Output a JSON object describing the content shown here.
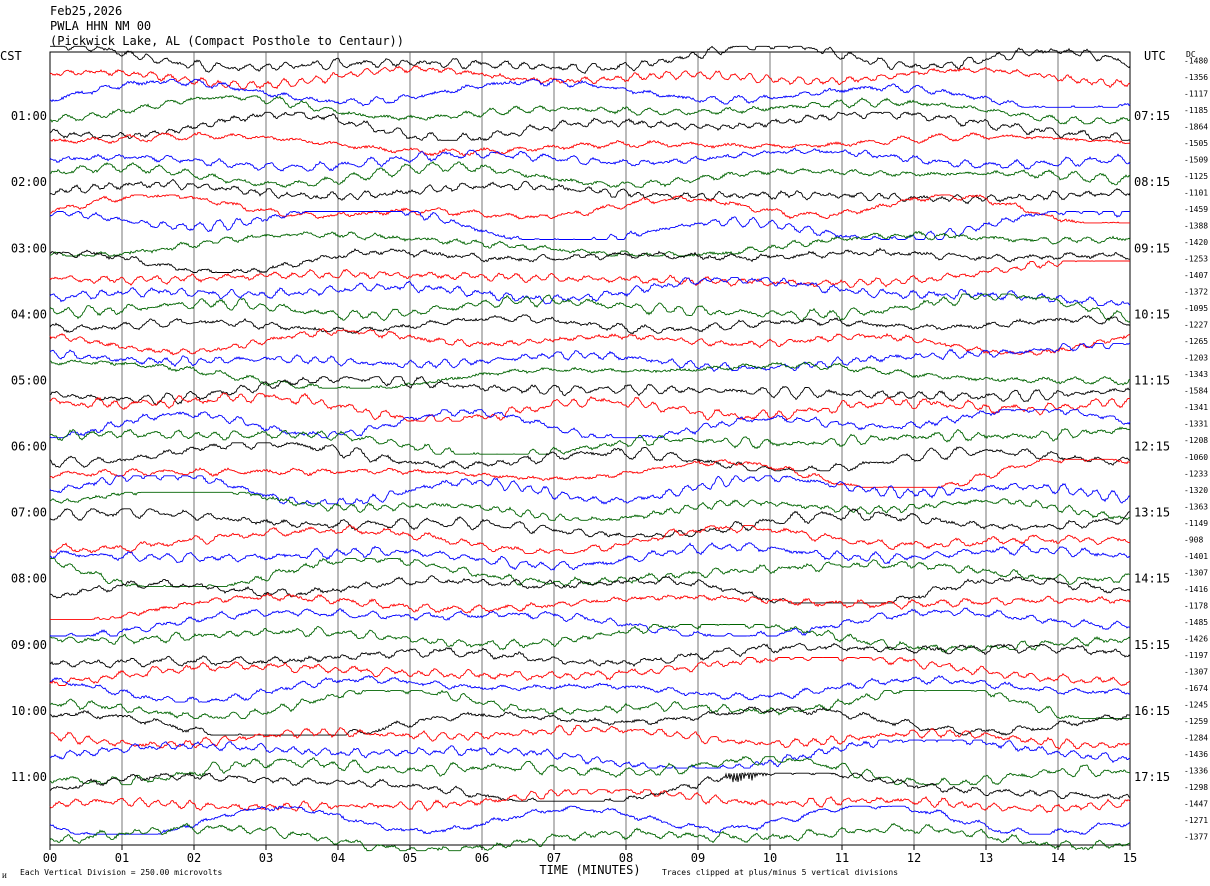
{
  "header": {
    "date": "Feb25,2026",
    "station": "PWLA HHN NM 00",
    "location": "(Pickwick Lake, AL (Compact Posthole to Centaur))"
  },
  "left_tz": "CST",
  "right_tz": "UTC",
  "dc_label": "DC",
  "footer": {
    "scale_note": "Each Vertical Division =  250.00 microvolts",
    "xlabel": "TIME (MINUTES)",
    "clip_note": "Traces clipped at plus/minus 5 vertical divisions",
    "corner_mark": "ᴎ"
  },
  "trace_colors": [
    "#000000",
    "#ff0000",
    "#0000ff",
    "#006400"
  ],
  "chart_data": {
    "type": "line",
    "xlabel": "TIME (MINUTES)",
    "xlim": [
      0,
      15
    ],
    "x_ticks": [
      "00",
      "01",
      "02",
      "03",
      "04",
      "05",
      "06",
      "07",
      "08",
      "09",
      "10",
      "11",
      "12",
      "13",
      "14",
      "15"
    ],
    "y_axis_left": [
      "01:00",
      "02:00",
      "03:00",
      "04:00",
      "05:00",
      "06:00",
      "07:00",
      "08:00",
      "09:00",
      "10:00",
      "11:00"
    ],
    "y_axis_right": [
      "07:15",
      "08:15",
      "09:15",
      "10:15",
      "11:15",
      "12:15",
      "13:15",
      "14:15",
      "15:15",
      "16:15",
      "17:15"
    ],
    "traces_per_hour": 4,
    "trace_count": 48,
    "dc_offsets": [
      "-1480",
      "-1356",
      "-1117",
      "-1185",
      "-1864",
      "-1505",
      "-1509",
      "-1125",
      "-1101",
      "-1459",
      "-1388",
      "-1420",
      "-1253",
      "-1407",
      "-1372",
      "-1095",
      "-1227",
      "-1265",
      "-1203",
      "-1343",
      "-1584",
      "-1341",
      "-1331",
      "-1208",
      "-1060",
      "-1233",
      "-1320",
      "-1363",
      "-1149",
      "-908",
      "-1401",
      "-1307",
      "-1416",
      "-1178",
      "-1485",
      "-1426",
      "-1197",
      "-1307",
      "-1674",
      "-1245",
      "-1259",
      "-1284",
      "-1436",
      "-1336",
      "-1298",
      "-1447",
      "-1271",
      "-1377"
    ],
    "event": {
      "trace_index": 44,
      "minute_start": 9.35,
      "minute_end": 10.0
    }
  }
}
